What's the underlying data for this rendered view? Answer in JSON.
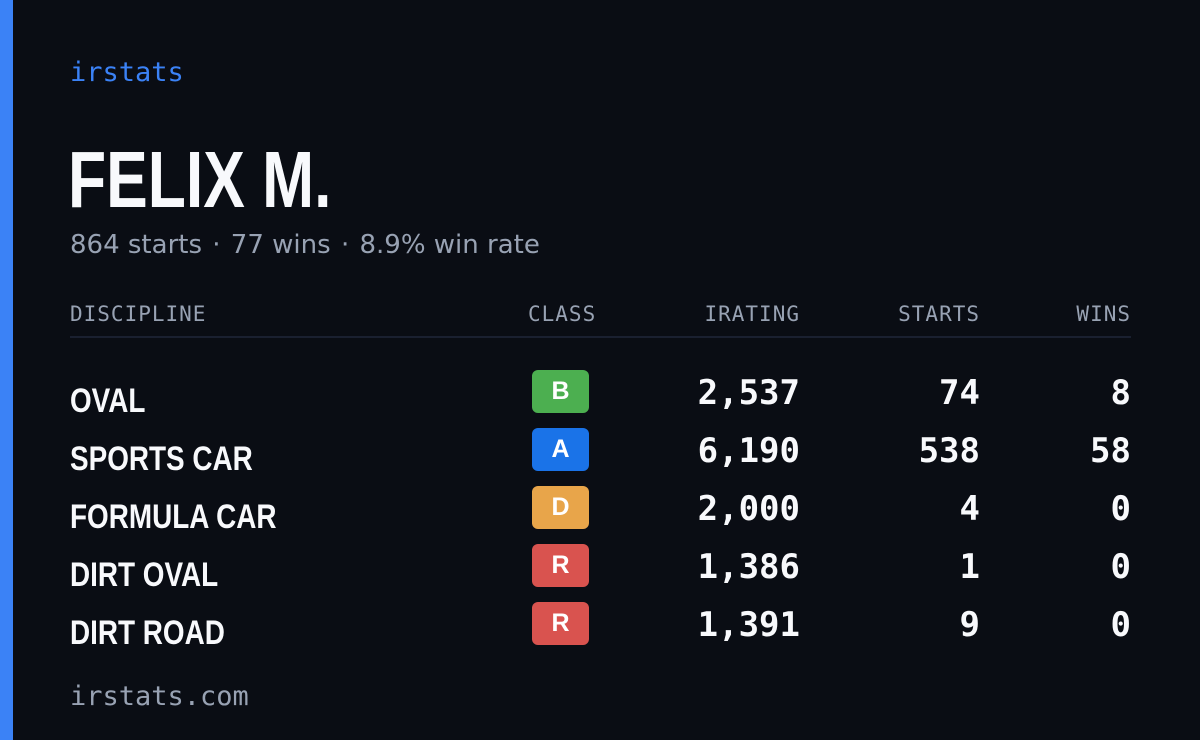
{
  "brand": {
    "label": "irstats"
  },
  "profile": {
    "name": "FELIX M.",
    "starts_text": "864 starts",
    "wins_text": "77 wins",
    "winrate_text": "8.9% win rate",
    "separator": "·"
  },
  "table": {
    "headers": {
      "discipline": "DISCIPLINE",
      "class": "CLASS",
      "irating": "IRATING",
      "starts": "STARTS",
      "wins": "WINS"
    },
    "rows": [
      {
        "discipline": "OVAL",
        "class": "B",
        "class_color": "#4caf50",
        "irating": "2,537",
        "starts": "74",
        "wins": "8"
      },
      {
        "discipline": "SPORTS CAR",
        "class": "A",
        "class_color": "#1a73e8",
        "irating": "6,190",
        "starts": "538",
        "wins": "58"
      },
      {
        "discipline": "FORMULA CAR",
        "class": "D",
        "class_color": "#e8a54a",
        "irating": "2,000",
        "starts": "4",
        "wins": "0"
      },
      {
        "discipline": "DIRT OVAL",
        "class": "R",
        "class_color": "#d9534f",
        "irating": "1,386",
        "starts": "1",
        "wins": "0"
      },
      {
        "discipline": "DIRT ROAD",
        "class": "R",
        "class_color": "#d9534f",
        "irating": "1,391",
        "starts": "9",
        "wins": "0"
      }
    ]
  },
  "footer": {
    "url": "irstats.com"
  },
  "colors": {
    "background": "#0a0d14",
    "accent": "#3b82f6",
    "muted_text": "#98a2b3",
    "primary_text": "#f8f9fc"
  }
}
